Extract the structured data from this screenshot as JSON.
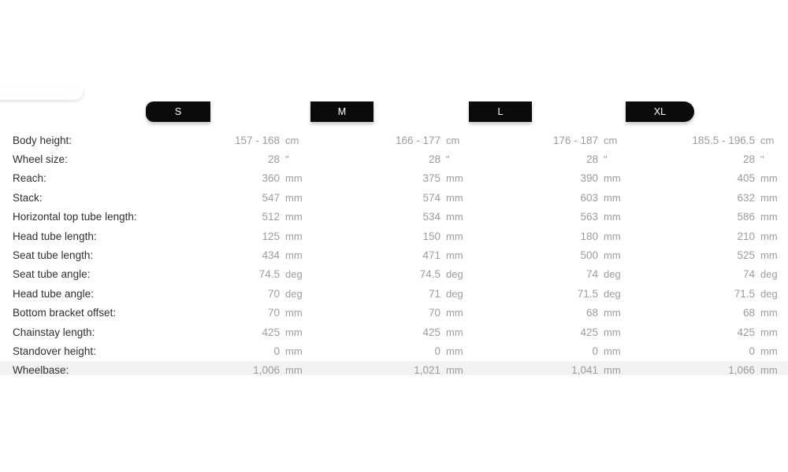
{
  "tabs": {
    "s": "S",
    "m": "M",
    "l": "L",
    "xl": "XL"
  },
  "colors": {
    "tab_background": "#0b0b0b",
    "tab_text": "#ffffff",
    "label_text": "#2f2f2f",
    "value_text": "#9c9c9c",
    "last_row_background": "#f2f2f2",
    "page_background": "#ffffff"
  },
  "table": {
    "rows": [
      {
        "label": "Body height:",
        "s": {
          "value": "157 - 168",
          "unit": "cm"
        },
        "m": {
          "value": "166 - 177",
          "unit": "cm"
        },
        "l": {
          "value": "176 - 187",
          "unit": "cm"
        },
        "xl": {
          "value": "185.5 - 196.5",
          "unit": "cm"
        }
      },
      {
        "label": "Wheel size:",
        "s": {
          "value": "28",
          "unit": "\""
        },
        "m": {
          "value": "28",
          "unit": "\""
        },
        "l": {
          "value": "28",
          "unit": "\""
        },
        "xl": {
          "value": "28",
          "unit": "\""
        }
      },
      {
        "label": "Reach:",
        "s": {
          "value": "360",
          "unit": "mm"
        },
        "m": {
          "value": "375",
          "unit": "mm"
        },
        "l": {
          "value": "390",
          "unit": "mm"
        },
        "xl": {
          "value": "405",
          "unit": "mm"
        }
      },
      {
        "label": "Stack:",
        "s": {
          "value": "547",
          "unit": "mm"
        },
        "m": {
          "value": "574",
          "unit": "mm"
        },
        "l": {
          "value": "603",
          "unit": "mm"
        },
        "xl": {
          "value": "632",
          "unit": "mm"
        }
      },
      {
        "label": "Horizontal top tube length:",
        "s": {
          "value": "512",
          "unit": "mm"
        },
        "m": {
          "value": "534",
          "unit": "mm"
        },
        "l": {
          "value": "563",
          "unit": "mm"
        },
        "xl": {
          "value": "586",
          "unit": "mm"
        }
      },
      {
        "label": "Head tube length:",
        "s": {
          "value": "125",
          "unit": "mm"
        },
        "m": {
          "value": "150",
          "unit": "mm"
        },
        "l": {
          "value": "180",
          "unit": "mm"
        },
        "xl": {
          "value": "210",
          "unit": "mm"
        }
      },
      {
        "label": "Seat tube length:",
        "s": {
          "value": "434",
          "unit": "mm"
        },
        "m": {
          "value": "471",
          "unit": "mm"
        },
        "l": {
          "value": "500",
          "unit": "mm"
        },
        "xl": {
          "value": "525",
          "unit": "mm"
        }
      },
      {
        "label": "Seat tube angle:",
        "s": {
          "value": "74.5",
          "unit": "deg"
        },
        "m": {
          "value": "74.5",
          "unit": "deg"
        },
        "l": {
          "value": "74",
          "unit": "deg"
        },
        "xl": {
          "value": "74",
          "unit": "deg"
        }
      },
      {
        "label": "Head tube angle:",
        "s": {
          "value": "70",
          "unit": "deg"
        },
        "m": {
          "value": "71",
          "unit": "deg"
        },
        "l": {
          "value": "71.5",
          "unit": "deg"
        },
        "xl": {
          "value": "71.5",
          "unit": "deg"
        }
      },
      {
        "label": "Bottom bracket offset:",
        "s": {
          "value": "70",
          "unit": "mm"
        },
        "m": {
          "value": "70",
          "unit": "mm"
        },
        "l": {
          "value": "68",
          "unit": "mm"
        },
        "xl": {
          "value": "68",
          "unit": "mm"
        }
      },
      {
        "label": "Chainstay length:",
        "s": {
          "value": "425",
          "unit": "mm"
        },
        "m": {
          "value": "425",
          "unit": "mm"
        },
        "l": {
          "value": "425",
          "unit": "mm"
        },
        "xl": {
          "value": "425",
          "unit": "mm"
        }
      },
      {
        "label": "Standover height:",
        "s": {
          "value": "0",
          "unit": "mm"
        },
        "m": {
          "value": "0",
          "unit": "mm"
        },
        "l": {
          "value": "0",
          "unit": "mm"
        },
        "xl": {
          "value": "0",
          "unit": "mm"
        }
      },
      {
        "label": "Wheelbase:",
        "s": {
          "value": "1,006",
          "unit": "mm"
        },
        "m": {
          "value": "1,021",
          "unit": "mm"
        },
        "l": {
          "value": "1,041",
          "unit": "mm"
        },
        "xl": {
          "value": "1,066",
          "unit": "mm"
        }
      }
    ]
  }
}
